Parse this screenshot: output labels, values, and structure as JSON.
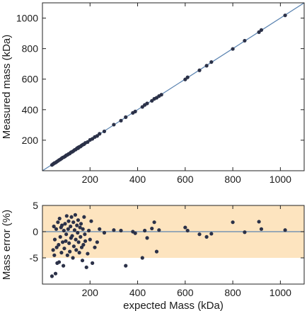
{
  "chart_data": [
    {
      "type": "scatter",
      "xlabel": "",
      "ylabel": "Measured mass (kDa)",
      "xlim": [
        0,
        1100
      ],
      "ylim": [
        0,
        1100
      ],
      "xticks": [
        200,
        400,
        600,
        800,
        1000
      ],
      "yticks": [
        200,
        400,
        600,
        800,
        1000
      ],
      "xtick_labels": [
        "200",
        "400",
        "600",
        "800",
        "1000"
      ],
      "ytick_labels": [
        "200",
        "400",
        "600",
        "800",
        "1000"
      ],
      "grid": false,
      "reference_line": {
        "slope": 1,
        "intercept": 0,
        "color": "#5b84b1"
      },
      "marker_color": "#2b3148",
      "x": [
        40,
        45,
        50,
        55,
        60,
        65,
        70,
        75,
        80,
        85,
        90,
        95,
        100,
        105,
        110,
        115,
        120,
        125,
        130,
        135,
        140,
        145,
        150,
        150,
        155,
        160,
        165,
        170,
        175,
        180,
        190,
        200,
        210,
        220,
        230,
        240,
        260,
        300,
        330,
        350,
        380,
        390,
        420,
        430,
        440,
        460,
        470,
        480,
        490,
        500,
        600,
        610,
        660,
        690,
        710,
        800,
        850,
        910,
        920,
        1020
      ],
      "y": [
        38,
        44,
        50,
        53,
        59,
        64,
        70,
        74,
        80,
        86,
        89,
        94,
        101,
        104,
        110,
        113,
        121,
        124,
        129,
        136,
        139,
        147,
        148,
        152,
        156,
        159,
        166,
        171,
        174,
        182,
        188,
        202,
        209,
        221,
        228,
        242,
        258,
        302,
        328,
        351,
        379,
        388,
        418,
        431,
        441,
        458,
        471,
        478,
        489,
        498,
        598,
        612,
        658,
        688,
        712,
        798,
        852,
        908,
        922,
        1018
      ]
    },
    {
      "type": "scatter",
      "xlabel": "expected Mass (kDa)",
      "ylabel": "Mass error (%)",
      "xlim": [
        0,
        1100
      ],
      "ylim": [
        -10,
        5
      ],
      "xticks": [
        200,
        400,
        600,
        800,
        1000
      ],
      "yticks": [
        -5,
        0,
        5
      ],
      "xtick_labels": [
        "200",
        "400",
        "600",
        "800",
        "1000"
      ],
      "ytick_labels": [
        "-5",
        "0",
        "5"
      ],
      "grid": false,
      "band": {
        "y_from": -5,
        "y_to": 5,
        "color": "#fde4bf"
      },
      "reference_line": {
        "y": 0,
        "color": "#5b84b1"
      },
      "marker_color": "#2b3148",
      "x": [
        40,
        45,
        48,
        50,
        52,
        55,
        58,
        60,
        62,
        65,
        68,
        70,
        72,
        75,
        78,
        80,
        82,
        85,
        88,
        90,
        92,
        95,
        98,
        100,
        102,
        105,
        108,
        110,
        112,
        115,
        118,
        120,
        122,
        125,
        128,
        130,
        132,
        135,
        138,
        140,
        142,
        145,
        148,
        150,
        152,
        155,
        158,
        160,
        162,
        165,
        168,
        170,
        172,
        175,
        178,
        180,
        185,
        190,
        195,
        200,
        205,
        210,
        220,
        230,
        240,
        260,
        300,
        330,
        350,
        380,
        390,
        420,
        430,
        440,
        460,
        470,
        480,
        490,
        600,
        610,
        660,
        690,
        710,
        800,
        850,
        910,
        920,
        1020
      ],
      "y": [
        -8.5,
        -3.5,
        1.0,
        -4.5,
        -1.5,
        -8.0,
        0.5,
        -3.0,
        -6.0,
        1.8,
        -2.5,
        -5.8,
        2.5,
        -1.0,
        0.8,
        -4.0,
        1.2,
        -2.0,
        -6.5,
        0.2,
        -3.2,
        1.5,
        -1.8,
        -0.5,
        3.0,
        -4.5,
        0.5,
        2.0,
        -2.2,
        -3.8,
        1.0,
        -1.2,
        2.8,
        -0.8,
        -5.0,
        1.8,
        -2.8,
        0.3,
        3.2,
        -1.5,
        -3.5,
        1.2,
        -0.2,
        2.2,
        -2.0,
        -4.0,
        0.8,
        -1.0,
        1.5,
        -3.0,
        -5.5,
        0.5,
        -2.5,
        2.8,
        -0.5,
        -1.8,
        -6.8,
        -4.2,
        0.2,
        -1.5,
        2.0,
        -6.0,
        -3.0,
        -2.0,
        0.5,
        -0.2,
        0.3,
        0.2,
        -6.5,
        0.0,
        -0.3,
        -5.0,
        0.2,
        -1.2,
        0.6,
        1.8,
        -3.8,
        0.3,
        0.8,
        0.2,
        -0.5,
        -1.0,
        -0.4,
        1.8,
        -0.1,
        1.9,
        0.5,
        0.3
      ]
    }
  ]
}
